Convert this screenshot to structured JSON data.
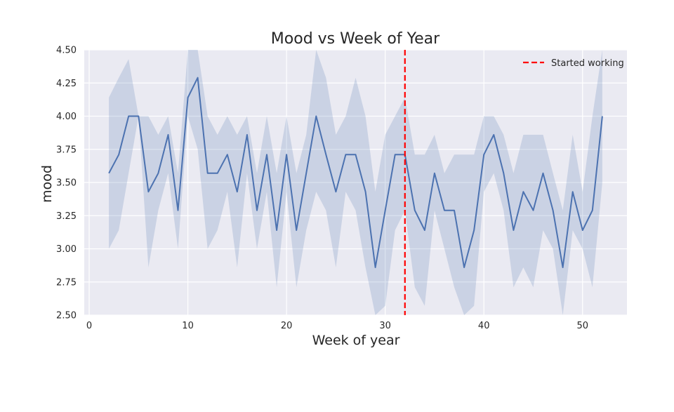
{
  "chart_data": {
    "type": "line",
    "title": "Mood vs Week of Year",
    "xlabel": "Week of year",
    "ylabel": "mood",
    "xlim": [
      -0.5,
      54.5
    ],
    "ylim": [
      2.5,
      4.5
    ],
    "xticks": [
      0,
      10,
      20,
      30,
      40,
      50
    ],
    "xtick_labels": [
      "0",
      "10",
      "20",
      "30",
      "40",
      "50"
    ],
    "yticks": [
      2.5,
      2.75,
      3.0,
      3.25,
      3.5,
      3.75,
      4.0,
      4.25,
      4.5
    ],
    "ytick_labels": [
      "2.50",
      "2.75",
      "3.00",
      "3.25",
      "3.50",
      "3.75",
      "4.00",
      "4.25",
      "4.50"
    ],
    "grid": true,
    "legend_position": "top-right",
    "series": [
      {
        "name": "mood",
        "color": "#4c72b0",
        "band_color": "#4c72b0",
        "x": [
          2,
          3,
          4,
          5,
          6,
          7,
          8,
          9,
          10,
          11,
          12,
          13,
          14,
          15,
          16,
          17,
          18,
          19,
          20,
          21,
          22,
          23,
          24,
          25,
          26,
          27,
          28,
          29,
          30,
          31,
          32,
          33,
          34,
          35,
          36,
          37,
          38,
          39,
          40,
          41,
          42,
          43,
          44,
          45,
          46,
          47,
          48,
          49,
          50,
          51,
          52
        ],
        "y": [
          3.57,
          3.71,
          4.0,
          4.0,
          3.43,
          3.57,
          3.86,
          3.29,
          4.14,
          4.29,
          3.57,
          3.57,
          3.71,
          3.43,
          3.86,
          3.29,
          3.71,
          3.14,
          3.71,
          3.14,
          3.57,
          4.0,
          3.71,
          3.43,
          3.71,
          3.71,
          3.43,
          2.86,
          3.29,
          3.71,
          3.71,
          3.29,
          3.14,
          3.57,
          3.29,
          3.29,
          2.86,
          3.14,
          3.71,
          3.86,
          3.57,
          3.14,
          3.43,
          3.29,
          3.57,
          3.29,
          2.86,
          3.43,
          3.14,
          3.29,
          4.0
        ],
        "lower": [
          3.0,
          3.14,
          3.57,
          4.0,
          2.86,
          3.29,
          3.57,
          3.0,
          4.0,
          3.75,
          3.0,
          3.14,
          3.43,
          2.86,
          3.57,
          3.0,
          3.43,
          2.71,
          3.43,
          2.71,
          3.14,
          3.43,
          3.29,
          2.86,
          3.43,
          3.29,
          2.86,
          2.5,
          2.57,
          3.14,
          3.29,
          2.71,
          2.57,
          3.29,
          3.0,
          2.71,
          2.45,
          2.57,
          3.43,
          3.57,
          3.29,
          2.71,
          2.86,
          2.71,
          3.14,
          3.0,
          2.5,
          3.14,
          3.0,
          2.71,
          3.5
        ],
        "upper": [
          4.14,
          4.29,
          4.43,
          4.0,
          4.0,
          3.86,
          4.0,
          3.57,
          4.5,
          4.5,
          4.0,
          3.86,
          4.0,
          3.86,
          4.0,
          3.57,
          4.0,
          3.57,
          4.0,
          3.57,
          3.86,
          4.5,
          4.29,
          3.86,
          4.0,
          4.29,
          4.0,
          3.43,
          3.86,
          4.0,
          4.14,
          3.71,
          3.71,
          3.86,
          3.57,
          3.71,
          3.71,
          3.71,
          4.0,
          4.0,
          3.86,
          3.57,
          3.86,
          3.86,
          3.86,
          3.57,
          3.29,
          3.86,
          3.43,
          4.0,
          4.5
        ]
      }
    ],
    "annotations": [
      {
        "type": "vline",
        "x": 32,
        "label": "Started working",
        "color": "#ff0000",
        "style": "dashed"
      }
    ],
    "plot_background": "#eaeaf2",
    "grid_color": "#ffffff"
  }
}
